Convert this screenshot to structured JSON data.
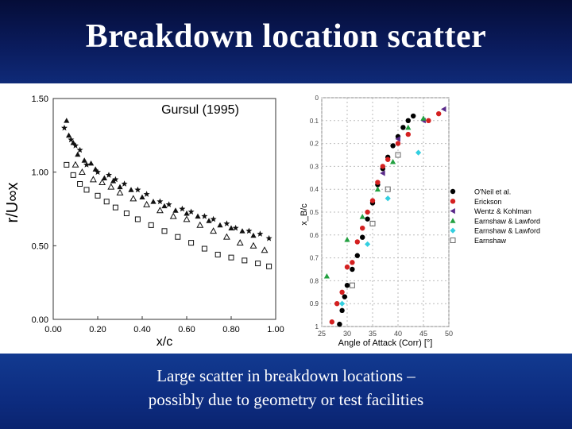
{
  "slide": {
    "title": "Breakdown location scatter",
    "caption_line1": "Large scatter in breakdown locations –",
    "caption_line2": "possibly due to geometry or test facilities"
  },
  "chart_data": [
    {
      "type": "scatter",
      "annotation": "Gursul (1995)",
      "xlabel": "x/c",
      "ylabel": "r/U∞x",
      "xlim": [
        0,
        1.0
      ],
      "ylim": [
        0,
        1.5
      ],
      "xticks": [
        "0.00",
        "0.20",
        "0.40",
        "0.60",
        "0.80",
        "1.00"
      ],
      "yticks": [
        "0.00",
        "0.50",
        "1.00",
        "1.50"
      ],
      "series": [
        {
          "marker": "star",
          "points": [
            [
              0.05,
              1.3
            ],
            [
              0.08,
              1.22
            ],
            [
              0.1,
              1.18
            ],
            [
              0.12,
              1.15
            ],
            [
              0.15,
              1.05
            ],
            [
              0.2,
              1.0
            ],
            [
              0.25,
              0.98
            ],
            [
              0.28,
              0.95
            ],
            [
              0.32,
              0.92
            ],
            [
              0.38,
              0.88
            ],
            [
              0.42,
              0.85
            ],
            [
              0.48,
              0.8
            ],
            [
              0.52,
              0.78
            ],
            [
              0.58,
              0.75
            ],
            [
              0.62,
              0.73
            ],
            [
              0.68,
              0.7
            ],
            [
              0.72,
              0.68
            ],
            [
              0.78,
              0.65
            ],
            [
              0.82,
              0.62
            ],
            [
              0.88,
              0.6
            ],
            [
              0.93,
              0.58
            ],
            [
              0.97,
              0.55
            ]
          ]
        },
        {
          "marker": "triangle-filled",
          "points": [
            [
              0.06,
              1.35
            ],
            [
              0.07,
              1.25
            ],
            [
              0.09,
              1.2
            ],
            [
              0.11,
              1.12
            ],
            [
              0.14,
              1.08
            ],
            [
              0.17,
              1.06
            ],
            [
              0.19,
              1.02
            ],
            [
              0.23,
              0.96
            ],
            [
              0.27,
              0.94
            ],
            [
              0.3,
              0.9
            ],
            [
              0.35,
              0.88
            ],
            [
              0.4,
              0.83
            ],
            [
              0.45,
              0.8
            ],
            [
              0.5,
              0.77
            ],
            [
              0.55,
              0.74
            ],
            [
              0.6,
              0.72
            ],
            [
              0.65,
              0.7
            ],
            [
              0.7,
              0.67
            ],
            [
              0.75,
              0.64
            ],
            [
              0.8,
              0.62
            ],
            [
              0.85,
              0.6
            ],
            [
              0.9,
              0.57
            ]
          ]
        },
        {
          "marker": "triangle-open",
          "points": [
            [
              0.1,
              1.05
            ],
            [
              0.13,
              1.0
            ],
            [
              0.18,
              0.95
            ],
            [
              0.22,
              0.93
            ],
            [
              0.26,
              0.9
            ],
            [
              0.3,
              0.86
            ],
            [
              0.36,
              0.82
            ],
            [
              0.42,
              0.78
            ],
            [
              0.48,
              0.74
            ],
            [
              0.54,
              0.7
            ],
            [
              0.6,
              0.68
            ],
            [
              0.66,
              0.64
            ],
            [
              0.72,
              0.6
            ],
            [
              0.78,
              0.56
            ],
            [
              0.84,
              0.52
            ],
            [
              0.9,
              0.5
            ],
            [
              0.95,
              0.47
            ]
          ]
        },
        {
          "marker": "square-open",
          "points": [
            [
              0.06,
              1.05
            ],
            [
              0.09,
              0.98
            ],
            [
              0.12,
              0.92
            ],
            [
              0.15,
              0.88
            ],
            [
              0.2,
              0.84
            ],
            [
              0.24,
              0.8
            ],
            [
              0.28,
              0.76
            ],
            [
              0.33,
              0.72
            ],
            [
              0.38,
              0.68
            ],
            [
              0.44,
              0.64
            ],
            [
              0.5,
              0.6
            ],
            [
              0.56,
              0.56
            ],
            [
              0.62,
              0.52
            ],
            [
              0.68,
              0.48
            ],
            [
              0.74,
              0.44
            ],
            [
              0.8,
              0.42
            ],
            [
              0.86,
              0.4
            ],
            [
              0.92,
              0.38
            ],
            [
              0.97,
              0.36
            ]
          ]
        }
      ]
    },
    {
      "type": "scatter",
      "xlabel": "Angle of Attack (Corr) [°]",
      "ylabel": "x_B/c",
      "xlim": [
        25,
        50
      ],
      "ylim": [
        0,
        1.0
      ],
      "y_inverted": true,
      "xticks": [
        "25",
        "30",
        "35",
        "40",
        "45",
        "50"
      ],
      "yticks": [
        "0",
        "0.1",
        "0.2",
        "0.3",
        "0.4",
        "0.5",
        "0.6",
        "0.7",
        "0.8",
        "0.9",
        "1"
      ],
      "legend_position": "right",
      "series": [
        {
          "name": "O'Neil et al.",
          "marker": "circle",
          "color": "#000000",
          "points": [
            [
              28.5,
              0.99
            ],
            [
              29,
              0.93
            ],
            [
              29.5,
              0.87
            ],
            [
              30,
              0.82
            ],
            [
              31,
              0.75
            ],
            [
              32,
              0.69
            ],
            [
              33,
              0.61
            ],
            [
              34,
              0.53
            ],
            [
              35,
              0.46
            ],
            [
              36,
              0.38
            ],
            [
              37,
              0.31
            ],
            [
              38,
              0.26
            ],
            [
              39,
              0.21
            ],
            [
              40,
              0.17
            ],
            [
              41,
              0.13
            ],
            [
              42,
              0.1
            ],
            [
              43,
              0.08
            ]
          ]
        },
        {
          "name": "Erickson",
          "marker": "circle",
          "color": "#d42020",
          "points": [
            [
              27,
              0.98
            ],
            [
              28,
              0.9
            ],
            [
              29,
              0.85
            ],
            [
              30,
              0.74
            ],
            [
              31,
              0.72
            ],
            [
              32,
              0.63
            ],
            [
              33,
              0.57
            ],
            [
              34,
              0.5
            ],
            [
              35,
              0.45
            ],
            [
              36,
              0.37
            ],
            [
              37,
              0.3
            ],
            [
              38,
              0.27
            ],
            [
              40,
              0.2
            ],
            [
              42,
              0.16
            ],
            [
              46,
              0.1
            ],
            [
              48,
              0.07
            ]
          ]
        },
        {
          "name": "Wentz & Kohlman",
          "marker": "triangle-left",
          "color": "#5a2a8a",
          "points": [
            [
              37,
              0.33
            ],
            [
              40,
              0.18
            ],
            [
              45,
              0.1
            ],
            [
              49,
              0.05
            ]
          ]
        },
        {
          "name": "Earnshaw & Lawford",
          "marker": "triangle",
          "color": "#22a040",
          "points": [
            [
              26,
              0.78
            ],
            [
              30,
              0.62
            ],
            [
              33,
              0.52
            ],
            [
              36,
              0.4
            ],
            [
              39,
              0.28
            ],
            [
              42,
              0.13
            ],
            [
              45,
              0.09
            ]
          ]
        },
        {
          "name": "Earnshaw & Lawford",
          "marker": "diamond",
          "color": "#33cfe0",
          "points": [
            [
              29,
              0.9
            ],
            [
              34,
              0.64
            ],
            [
              38,
              0.44
            ],
            [
              44,
              0.24
            ]
          ]
        },
        {
          "name": "Earnshaw",
          "marker": "square-open",
          "color": "#666666",
          "points": [
            [
              31,
              0.82
            ],
            [
              35,
              0.55
            ],
            [
              38,
              0.4
            ],
            [
              40,
              0.25
            ]
          ]
        }
      ]
    }
  ]
}
